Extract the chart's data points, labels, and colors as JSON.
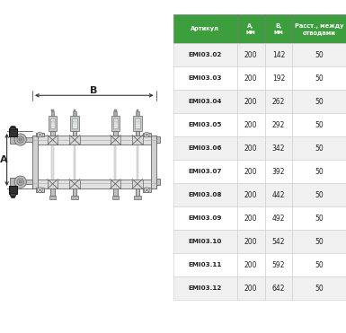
{
  "table_headers": [
    "Артикул",
    "А,\nмм",
    "В,\nмм",
    "Расст., между\nотводами"
  ],
  "table_rows": [
    [
      "EMI03.02",
      "200",
      "142",
      "50"
    ],
    [
      "EMI03.03",
      "200",
      "192",
      "50"
    ],
    [
      "EMI03.04",
      "200",
      "262",
      "50"
    ],
    [
      "EMI03.05",
      "200",
      "292",
      "50"
    ],
    [
      "EMI03.06",
      "200",
      "342",
      "50"
    ],
    [
      "EMI03.07",
      "200",
      "392",
      "50"
    ],
    [
      "EMI03.08",
      "200",
      "442",
      "50"
    ],
    [
      "EMI03.09",
      "200",
      "492",
      "50"
    ],
    [
      "EMI03.10",
      "200",
      "542",
      "50"
    ],
    [
      "EMI03.11",
      "200",
      "592",
      "50"
    ],
    [
      "EMI03.12",
      "200",
      "642",
      "50"
    ]
  ],
  "header_bg": "#3d9e3d",
  "header_text_color": "#ffffff",
  "row_bg_odd": "#f0f0f0",
  "row_bg_even": "#ffffff",
  "border_color": "#bbbbbb",
  "label_A": "A",
  "label_B": "B",
  "bg_color": "#ffffff",
  "draw_line_color": "#666666",
  "draw_bg": "#ffffff"
}
